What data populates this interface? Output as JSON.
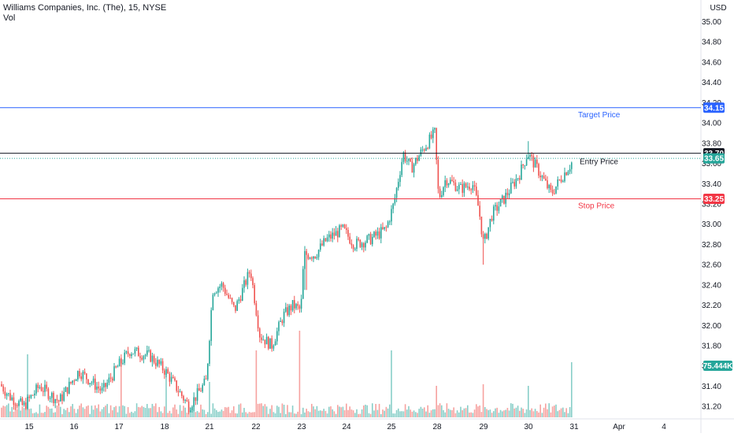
{
  "header": {
    "symbol_line": "Williams Companies, Inc. (The), 15, NYSE",
    "volume_label": "Vol"
  },
  "price_axis": {
    "currency": "USD"
  },
  "colors": {
    "up": "#26a69a",
    "down": "#ef5350",
    "target": "#2962ff",
    "entry": "#131722",
    "stop": "#f23645",
    "last": "#26a69a"
  },
  "chart_data": {
    "type": "candlestick",
    "title": "Williams Companies, Inc. (The), 15, NYSE",
    "ylim": [
      31.1,
      35.1
    ],
    "y_ticks": [
      "31.20",
      "31.40",
      "31.60",
      "31.80",
      "32.00",
      "32.20",
      "32.40",
      "32.60",
      "32.80",
      "33.00",
      "33.20",
      "33.40",
      "33.60",
      "33.80",
      "34.00",
      "34.20",
      "34.40",
      "34.60",
      "34.80",
      "35.00"
    ],
    "x_ticks": [
      "15",
      "16",
      "17",
      "18",
      "21",
      "22",
      "23",
      "24",
      "25",
      "28",
      "29",
      "30",
      "31",
      "Apr",
      "4"
    ],
    "levels": [
      {
        "name": "Target Price",
        "price": 34.15,
        "label": "34.15"
      },
      {
        "name": "Entry Price",
        "price": 33.7,
        "label": "33.70"
      },
      {
        "name": "Stop Price",
        "price": 33.25,
        "label": "33.25"
      }
    ],
    "last_price": {
      "price": 33.65,
      "label": "33.65"
    },
    "volume_label": "75.444K",
    "session_closes": [
      31.38,
      31.32,
      31.36,
      31.55,
      31.42,
      31.7,
      31.48,
      31.22,
      31.35,
      32.5,
      31.9,
      32.15,
      32.9,
      32.95,
      33.65,
      33.72,
      33.45,
      33.1,
      33.38,
      33.58,
      33.62
    ]
  }
}
